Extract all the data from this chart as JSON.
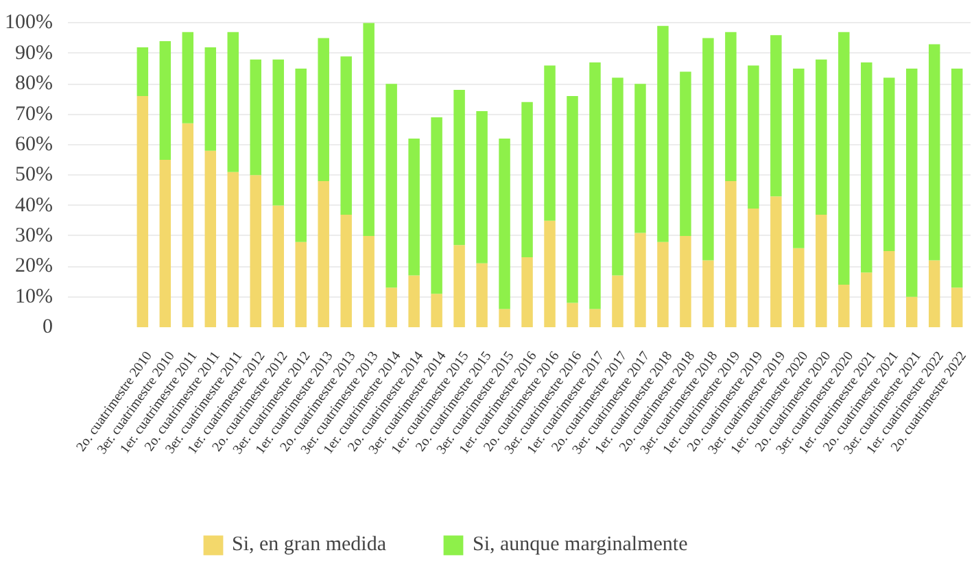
{
  "chart_data": {
    "type": "bar",
    "stacked": true,
    "categories": [
      "2o. cuatrimestre 2010",
      "3er. cuatrimestre 2010",
      "1er. cuatrimestre 2011",
      "2o. cuatrimestre 2011",
      "3er. cuatrimestre 2011",
      "1er. cuatrimestre 2012",
      "2o. cuatrimestre 2012",
      "3er. cuatrimestre 2012",
      "1er. cuatrimestre 2013",
      "2o. cuatrimestre 2013",
      "3er. cuatrimestre 2013",
      "1er. cuatrimestre 2014",
      "2o. cuatrimestre 2014",
      "3er. cuatrimestre 2014",
      "1er. cuatrimestre 2015",
      "2o. cuatrimestre 2015",
      "3er. cuatrimestre 2015",
      "1er. cuatrimestre 2016",
      "2o. cuatrimestre 2016",
      "3er. cuatrimestre 2016",
      "1er. cuatrimestre 2017",
      "2o. cuatrimestre 2017",
      "3er. cuatrimestre 2017",
      "1er. cuatrimestre 2018",
      "2o. cuatrimestre 2018",
      "3er. cuatrimestre 2018",
      "1er. cuatrimestre 2019",
      "2o. cuatrimestre 2019",
      "3er. cuatrimestre 2019",
      "1er. cuatrimestre 2020",
      "2o. cuatrimestre 2020",
      "3er. cuatrimestre 2020",
      "1er. cuatrimestre 2021",
      "2o. cuatrimestre 2021",
      "3er. cuatrimestre 2021",
      "1er. cuatrimestre 2022",
      "2o. cuatrimestre 2022"
    ],
    "series": [
      {
        "name": "Si, en gran medida",
        "color": "#f3d86b",
        "values": [
          76,
          55,
          67,
          58,
          51,
          50,
          40,
          28,
          48,
          37,
          30,
          13,
          17,
          11,
          27,
          21,
          6,
          23,
          35,
          8,
          6,
          17,
          31,
          28,
          30,
          22,
          48,
          39,
          43,
          26,
          37,
          14,
          18,
          25,
          10,
          22,
          13
        ]
      },
      {
        "name": "Si, aunque marginalmente",
        "color": "#8ef04a",
        "values": [
          16,
          39,
          30,
          34,
          46,
          38,
          48,
          57,
          47,
          52,
          70,
          67,
          45,
          58,
          51,
          50,
          56,
          51,
          51,
          68,
          81,
          65,
          49,
          71,
          54,
          73,
          49,
          47,
          53,
          59,
          51,
          83,
          69,
          57,
          75,
          71,
          72
        ]
      }
    ],
    "ylim": [
      0,
      101
    ],
    "yticks": [
      0,
      {
        "value": 10,
        "label": "10%"
      },
      {
        "value": 20,
        "label": "20%"
      },
      {
        "value": 30,
        "label": "30%"
      },
      {
        "value": 40,
        "label": "40%"
      },
      {
        "value": 50,
        "label": "50%"
      },
      {
        "value": 60,
        "label": "60%"
      },
      {
        "value": 70,
        "label": "70%"
      },
      {
        "value": 80,
        "label": "80%"
      },
      {
        "value": 90,
        "label": "90%"
      },
      {
        "value": 100,
        "label": "100%"
      }
    ],
    "grid": "y",
    "legend": "bottom"
  }
}
